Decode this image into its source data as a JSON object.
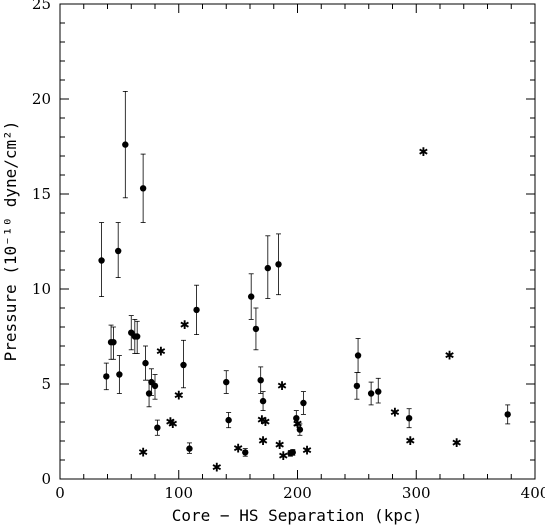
{
  "chart_data": {
    "type": "scatter",
    "xlabel": "Core − HS Separation (kpc)",
    "ylabel": "Pressure (10⁻¹⁰ dyne/cm²)",
    "xlim": [
      0,
      400
    ],
    "ylim": [
      0,
      25
    ],
    "xticks": [
      0,
      100,
      200,
      300,
      400
    ],
    "yticks": [
      0,
      5,
      10,
      15,
      20,
      25
    ],
    "xticks_labels": [
      "0",
      "100",
      "200",
      "300",
      "400"
    ],
    "yticks_labels": [
      "0",
      "5",
      "10",
      "15",
      "20",
      "25"
    ],
    "grid": false,
    "series": [
      {
        "marker": "filled-circle",
        "points": [
          {
            "x": 35,
            "y": 11.5,
            "lo": 9.6,
            "hi": 13.5
          },
          {
            "x": 39,
            "y": 5.4,
            "lo": 4.7,
            "hi": 6.1
          },
          {
            "x": 43,
            "y": 7.2,
            "lo": 6.3,
            "hi": 8.1
          },
          {
            "x": 45,
            "y": 7.2,
            "lo": 6.3,
            "hi": 8.0
          },
          {
            "x": 49,
            "y": 12.0,
            "lo": 10.6,
            "hi": 13.5
          },
          {
            "x": 50,
            "y": 5.5,
            "lo": 4.5,
            "hi": 6.5
          },
          {
            "x": 55,
            "y": 17.6,
            "lo": 14.8,
            "hi": 20.4
          },
          {
            "x": 60,
            "y": 7.7,
            "lo": 6.8,
            "hi": 8.6
          },
          {
            "x": 63,
            "y": 7.5,
            "lo": 6.6,
            "hi": 8.4
          },
          {
            "x": 65,
            "y": 7.5,
            "lo": 6.6,
            "hi": 8.3
          },
          {
            "x": 70,
            "y": 15.3,
            "lo": 13.5,
            "hi": 17.1
          },
          {
            "x": 72,
            "y": 6.1,
            "lo": 5.2,
            "hi": 7.0
          },
          {
            "x": 75,
            "y": 4.5,
            "lo": 3.8,
            "hi": 5.2
          },
          {
            "x": 77,
            "y": 5.1,
            "lo": 4.4,
            "hi": 5.8
          },
          {
            "x": 80,
            "y": 4.9,
            "lo": 4.2,
            "hi": 5.5
          },
          {
            "x": 82,
            "y": 2.7,
            "lo": 2.3,
            "hi": 3.1
          },
          {
            "x": 104,
            "y": 6.0,
            "lo": 4.8,
            "hi": 7.3
          },
          {
            "x": 109,
            "y": 1.6,
            "lo": 1.35,
            "hi": 1.9
          },
          {
            "x": 115,
            "y": 8.9,
            "lo": 7.6,
            "hi": 10.2
          },
          {
            "x": 140,
            "y": 5.1,
            "lo": 4.5,
            "hi": 5.7
          },
          {
            "x": 142,
            "y": 3.1,
            "lo": 2.7,
            "hi": 3.5
          },
          {
            "x": 156,
            "y": 1.4,
            "lo": 1.2,
            "hi": 1.6
          },
          {
            "x": 161,
            "y": 9.6,
            "lo": 8.4,
            "hi": 10.8
          },
          {
            "x": 165,
            "y": 7.9,
            "lo": 6.8,
            "hi": 9.0
          },
          {
            "x": 169,
            "y": 5.2,
            "lo": 4.5,
            "hi": 5.9
          },
          {
            "x": 171,
            "y": 4.1,
            "lo": 3.6,
            "hi": 4.6
          },
          {
            "x": 175,
            "y": 11.1,
            "lo": 9.5,
            "hi": 12.8
          },
          {
            "x": 184,
            "y": 11.3,
            "lo": 9.7,
            "hi": 12.9
          },
          {
            "x": 194,
            "y": 1.35,
            "lo": 1.2,
            "hi": 1.5
          },
          {
            "x": 196,
            "y": 1.4,
            "lo": 1.25,
            "hi": 1.55
          },
          {
            "x": 199,
            "y": 3.2,
            "lo": 2.8,
            "hi": 3.6
          },
          {
            "x": 202,
            "y": 2.6,
            "lo": 2.3,
            "hi": 2.9
          },
          {
            "x": 205,
            "y": 4.0,
            "lo": 3.4,
            "hi": 4.6
          },
          {
            "x": 250,
            "y": 4.9,
            "lo": 4.2,
            "hi": 5.6
          },
          {
            "x": 251,
            "y": 6.5,
            "lo": 5.6,
            "hi": 7.4
          },
          {
            "x": 262,
            "y": 4.5,
            "lo": 3.9,
            "hi": 5.1
          },
          {
            "x": 268,
            "y": 4.6,
            "lo": 4.0,
            "hi": 5.3
          },
          {
            "x": 294,
            "y": 3.2,
            "lo": 2.7,
            "hi": 3.7
          },
          {
            "x": 377,
            "y": 3.4,
            "lo": 2.9,
            "hi": 3.9
          }
        ]
      },
      {
        "marker": "star",
        "points": [
          {
            "x": 70,
            "y": 1.4
          },
          {
            "x": 85,
            "y": 6.7
          },
          {
            "x": 93,
            "y": 3.0
          },
          {
            "x": 95,
            "y": 2.9
          },
          {
            "x": 100,
            "y": 4.4
          },
          {
            "x": 105,
            "y": 8.1
          },
          {
            "x": 132,
            "y": 0.6
          },
          {
            "x": 150,
            "y": 1.6
          },
          {
            "x": 170,
            "y": 3.1
          },
          {
            "x": 171,
            "y": 2.0
          },
          {
            "x": 173,
            "y": 3.0
          },
          {
            "x": 185,
            "y": 1.8
          },
          {
            "x": 187,
            "y": 4.9
          },
          {
            "x": 188,
            "y": 1.2
          },
          {
            "x": 200,
            "y": 2.9
          },
          {
            "x": 208,
            "y": 1.5
          },
          {
            "x": 282,
            "y": 3.5
          },
          {
            "x": 295,
            "y": 2.0
          },
          {
            "x": 306,
            "y": 17.2
          },
          {
            "x": 328,
            "y": 6.5
          },
          {
            "x": 334,
            "y": 1.9
          }
        ]
      }
    ]
  }
}
